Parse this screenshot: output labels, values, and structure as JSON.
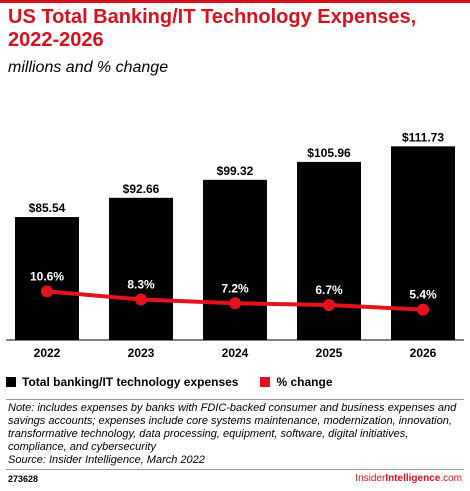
{
  "header": {
    "title": "US Total Banking/IT Technology Expenses, 2022-2026",
    "subtitle": "millions and % change"
  },
  "colors": {
    "accent": "#d7121f",
    "bars": "#000000",
    "line": "#e3121d"
  },
  "chart_data": {
    "type": "bar",
    "categories": [
      "2022",
      "2023",
      "2024",
      "2025",
      "2026"
    ],
    "series": [
      {
        "name": "Total banking/IT technology expenses",
        "type": "bar",
        "values": [
          85.54,
          92.66,
          99.32,
          105.96,
          111.73
        ],
        "labels": [
          "$85.54",
          "$92.66",
          "$99.32",
          "$105.96",
          "$111.73"
        ]
      },
      {
        "name": "% change",
        "type": "line",
        "values": [
          10.6,
          8.3,
          7.2,
          6.7,
          5.4
        ],
        "labels": [
          "10.6%",
          "8.3%",
          "7.2%",
          "6.7%",
          "5.4%"
        ]
      }
    ],
    "legend": "bottom-left",
    "grid": false
  },
  "legend": {
    "bars_label": "Total banking/IT technology expenses",
    "line_label": "% change"
  },
  "footnote": {
    "note": "Note: includes expenses by banks with FDIC-backed consumer and business expenses and savings accounts; expenses include core systems maintenance, modernization, innovation, transformative technology, data processing, equipment, software, digital initiatives, compliance, and cybersecurity",
    "source": "Source: Insider Intelligence, March 2022"
  },
  "footer": {
    "chart_id": "273628",
    "brand_a": "Insider",
    "brand_b": "Intelligence",
    "brand_c": ".com"
  }
}
